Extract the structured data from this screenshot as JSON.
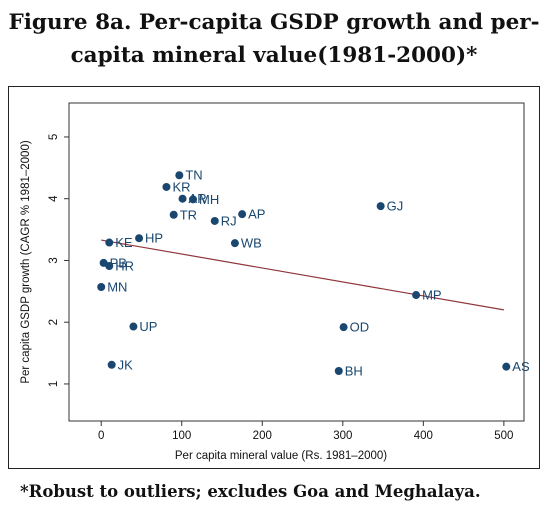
{
  "figure": {
    "title_line1": "Figure 8a. Per-capita GSDP growth and per-",
    "title_line2": "capita mineral value(1981-2000)*",
    "footnote": "*Robust to outliers; excludes Goa and Meghalaya."
  },
  "colors": {
    "points": "#1a476f",
    "fit_line": "#90353b",
    "plot_region_bg": "#ffffff",
    "axis": "#333333"
  },
  "chart_data": {
    "type": "scatter",
    "xlabel": "Per capita mineral value (Rs. 1981–2000)",
    "ylabel": "Per capita GSDP growth (CAGR % 1981–2000)",
    "xlim": [
      -40,
      525
    ],
    "ylim": [
      0.4,
      5.55
    ],
    "xticks": [
      0,
      100,
      200,
      300,
      400,
      500
    ],
    "yticks": [
      1,
      2,
      3,
      4,
      5
    ],
    "grid": false,
    "legend": "none",
    "points": [
      {
        "label": "TN",
        "x": 97,
        "y": 4.38
      },
      {
        "label": "KR",
        "x": 81,
        "y": 4.19
      },
      {
        "label": "AR",
        "x": 101,
        "y": 4.0
      },
      {
        "label": "MH",
        "x": 114,
        "y": 3.99
      },
      {
        "label": "TR",
        "x": 90,
        "y": 3.74
      },
      {
        "label": "AP",
        "x": 175,
        "y": 3.75
      },
      {
        "label": "RJ",
        "x": 141,
        "y": 3.64
      },
      {
        "label": "GJ",
        "x": 347,
        "y": 3.88
      },
      {
        "label": "WB",
        "x": 166,
        "y": 3.28
      },
      {
        "label": "HP",
        "x": 47,
        "y": 3.36
      },
      {
        "label": "KE",
        "x": 10,
        "y": 3.29
      },
      {
        "label": "PB",
        "x": 3,
        "y": 2.96
      },
      {
        "label": "HR",
        "x": 10,
        "y": 2.91
      },
      {
        "label": "MN",
        "x": 0,
        "y": 2.57
      },
      {
        "label": "MP",
        "x": 391,
        "y": 2.44
      },
      {
        "label": "UP",
        "x": 40,
        "y": 1.93
      },
      {
        "label": "OD",
        "x": 301,
        "y": 1.92
      },
      {
        "label": "JK",
        "x": 13,
        "y": 1.31
      },
      {
        "label": "BH",
        "x": 295,
        "y": 1.21
      },
      {
        "label": "AS",
        "x": 503,
        "y": 1.28
      }
    ],
    "fit_line": {
      "x": [
        0,
        500
      ],
      "y": [
        3.33,
        2.2
      ]
    }
  }
}
